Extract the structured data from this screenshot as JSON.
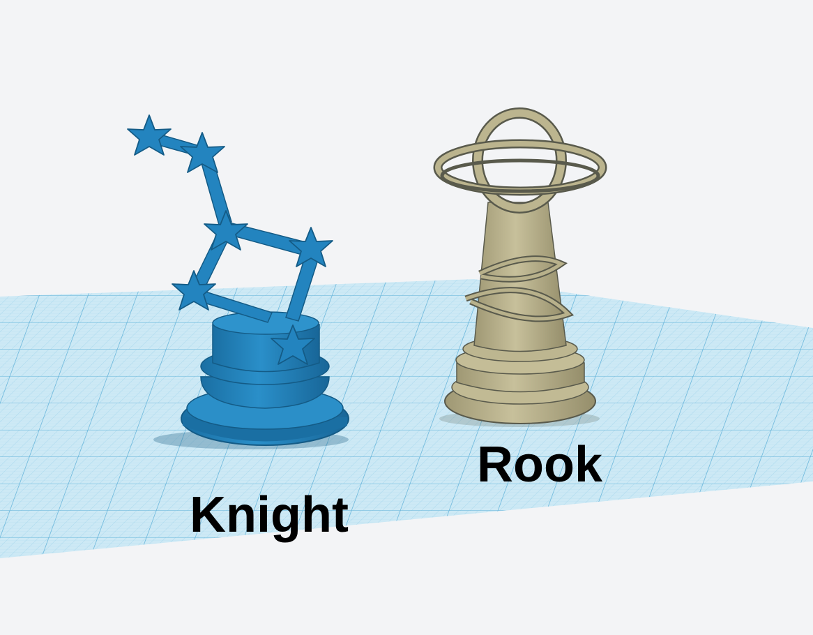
{
  "labels": {
    "knight": "Knight",
    "rook": "Rook"
  },
  "colors": {
    "background": "#f3f4f6",
    "grid_plane": "#c9e7f4",
    "grid_line": "#7cc3e4",
    "knight_blue": "#1f7fb8",
    "rook_tan": "#b7b08a"
  },
  "icons": {
    "knight_piece": "constellation-knight-icon",
    "rook_piece": "saturn-rook-icon"
  }
}
